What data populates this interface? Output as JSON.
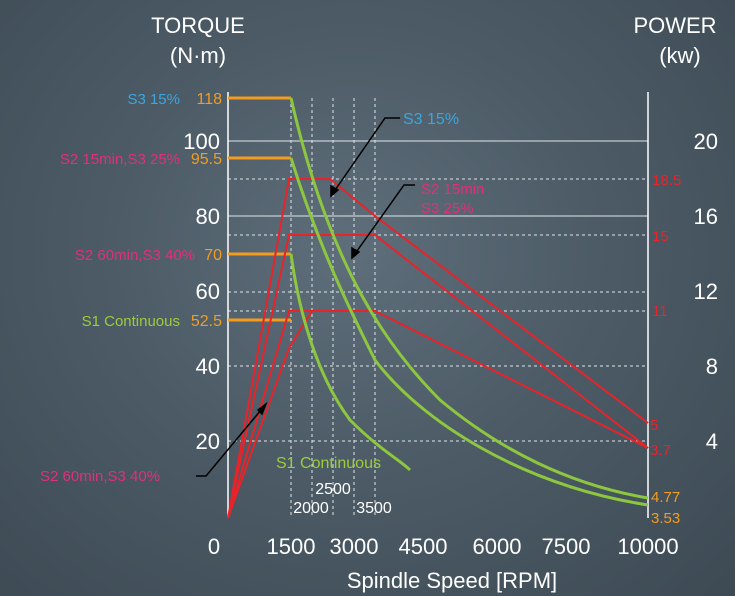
{
  "chart_data": {
    "type": "line",
    "left_axis": {
      "title_line1": "TORQUE",
      "title_line2": "(N·m)",
      "ticks": [
        20,
        40,
        60,
        80,
        100
      ],
      "ylim": [
        0,
        120
      ]
    },
    "right_axis": {
      "title_line1": "POWER",
      "title_line2": "(kw)",
      "ticks": [
        4,
        8,
        12,
        16,
        20
      ],
      "ylim": [
        0,
        24
      ]
    },
    "x_axis": {
      "label": "Spindle Speed [RPM]",
      "ticks": [
        0,
        1500,
        3000,
        4500,
        6000,
        7500,
        10000
      ],
      "xlim": [
        0,
        10000
      ],
      "inner_labels": [
        "2500",
        "2000",
        "3500"
      ]
    },
    "torque_levels": [
      {
        "mode": "S3 15%",
        "value": "118",
        "mode_color": "#3aa6e0"
      },
      {
        "mode": "S2 15min,S3 25%",
        "value": "95.5",
        "mode_color": "#e0307a"
      },
      {
        "mode": "S2 60min,S3 40%",
        "value": "70",
        "mode_color": "#e0307a"
      },
      {
        "mode": "S1 Continuous",
        "value": "52.5",
        "mode_color": "#9ccc3a"
      }
    ],
    "power_labels_red": [
      "18.5",
      "15",
      "11",
      "5",
      "3.7"
    ],
    "power_labels_orange": [
      "4.77",
      "3.53"
    ],
    "annotations": {
      "s3_15": "S3 15%",
      "s2_15_line1": "S2 15min",
      "s2_15_line2": "S3 25%",
      "s1_cont": "S1 Continuous",
      "s2_60": "S2 60min,S3 40%"
    },
    "torque_series": [
      {
        "name": "S3 15%",
        "points": [
          [
            1800,
            118
          ],
          [
            10000,
            4.77
          ]
        ]
      },
      {
        "name": "S2 15min,S3 25%",
        "points": [
          [
            1800,
            95.5
          ],
          [
            10000,
            3.53
          ]
        ]
      },
      {
        "name": "S2 60min,S3 40%",
        "points": [
          [
            1800,
            70
          ],
          [
            3500,
            30
          ]
        ]
      },
      {
        "name": "S1 Continuous",
        "points": [
          [
            1800,
            52.5
          ]
        ]
      }
    ],
    "power_series": [
      {
        "name": "S2 15min,S3 25%",
        "points": [
          [
            0,
            0
          ],
          [
            1800,
            18.5
          ],
          [
            2700,
            18.5
          ],
          [
            10000,
            5
          ]
        ]
      },
      {
        "name": "S2 60min,S3 40%",
        "points": [
          [
            0,
            0
          ],
          [
            1800,
            15
          ],
          [
            3500,
            15
          ],
          [
            10000,
            3.7
          ]
        ]
      },
      {
        "name": "S1 Continuous",
        "points": [
          [
            0,
            0
          ],
          [
            1800,
            11
          ],
          [
            2500,
            11
          ],
          [
            3500,
            11
          ],
          [
            10000,
            3.7
          ]
        ]
      }
    ],
    "colors": {
      "torque": "#8dc63f",
      "power": "#e8232a",
      "level": "#f39c1f",
      "text": "#ffffff",
      "grid": "#dfe6ea"
    }
  }
}
